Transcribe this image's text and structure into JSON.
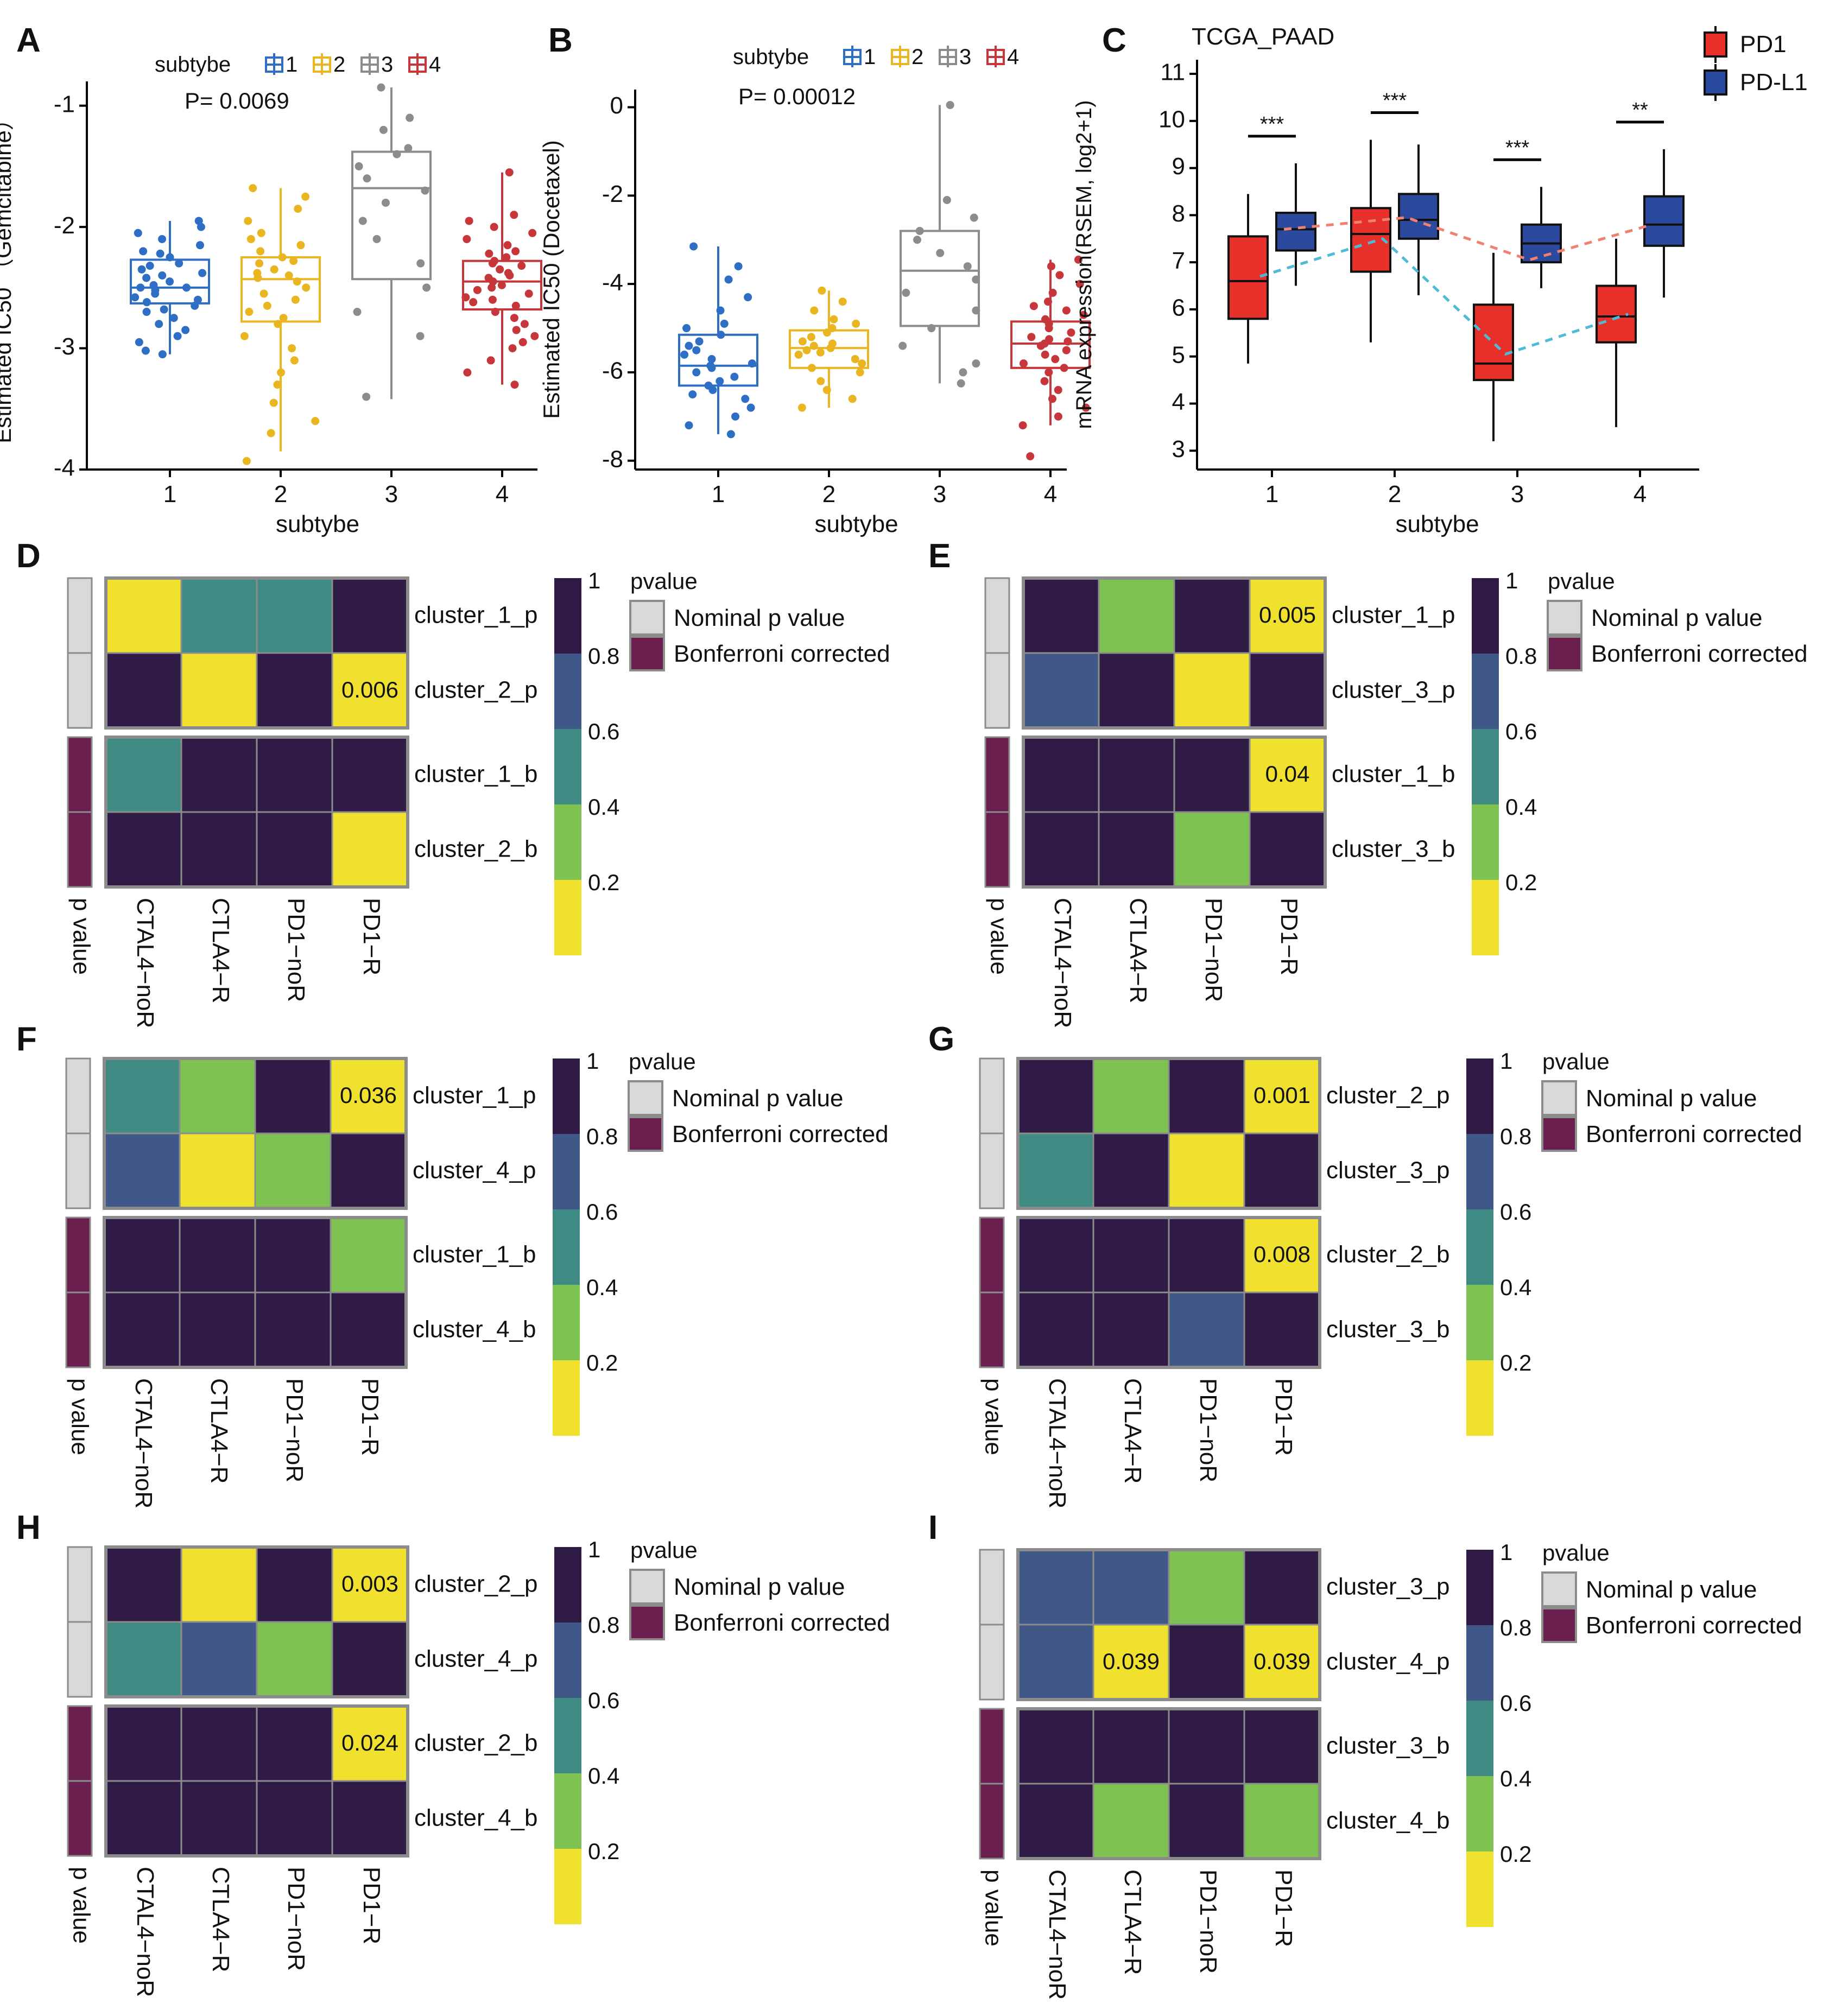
{
  "colors": {
    "subtype": {
      "1": "#2E6FC5",
      "2": "#E9B621",
      "3": "#8C8C8C",
      "4": "#C7363B"
    },
    "pd1": "#E8302A",
    "pdl1": "#2B4A9E",
    "viridis": [
      "#F0E12E",
      "#7EC352",
      "#3F8A83",
      "#3F5888",
      "#2F1B45"
    ],
    "nominal": "#D9D9D9",
    "bonferroni": "#6B1F4F",
    "cellborder": "#8C8C8C"
  },
  "panel_labels": [
    "A",
    "B",
    "C",
    "D",
    "E",
    "F",
    "G",
    "H",
    "I"
  ],
  "chart_data": [
    {
      "panel": "A",
      "type": "boxplot",
      "legend_title": "subtybe",
      "legend_keys": [
        "1",
        "2",
        "3",
        "4"
      ],
      "annotation": "P= 0.0069",
      "xlabel": "subtybe",
      "ylabel": "Estimated IC50 （Gemcitabine）",
      "categories": [
        "1",
        "2",
        "3",
        "4"
      ],
      "ylim": [
        -4.0,
        -0.8
      ],
      "yticks": [
        -4,
        -3,
        -2,
        -1
      ],
      "ytick_labels": [
        "-4",
        "-3",
        "-2",
        "-1"
      ],
      "boxes": [
        {
          "min": -3.05,
          "q1": -2.63,
          "median": -2.5,
          "q3": -2.27,
          "max": -1.95
        },
        {
          "min": -3.85,
          "q1": -2.78,
          "median": -2.43,
          "q3": -2.25,
          "max": -1.68
        },
        {
          "min": -3.42,
          "q1": -2.43,
          "median": -1.68,
          "q3": -1.38,
          "max": -0.85
        },
        {
          "min": -3.3,
          "q1": -2.68,
          "median": -2.45,
          "q3": -2.28,
          "max": -1.55
        }
      ],
      "points": [
        [
          -1.95,
          -2.0,
          -2.05,
          -2.1,
          -2.15,
          -2.2,
          -2.22,
          -2.25,
          -2.3,
          -2.32,
          -2.35,
          -2.38,
          -2.4,
          -2.42,
          -2.45,
          -2.48,
          -2.5,
          -2.5,
          -2.52,
          -2.55,
          -2.58,
          -2.6,
          -2.62,
          -2.65,
          -2.68,
          -2.7,
          -2.75,
          -2.8,
          -2.85,
          -2.9,
          -2.95,
          -3.02,
          -3.05
        ],
        [
          -1.68,
          -1.75,
          -1.85,
          -1.95,
          -2.05,
          -2.1,
          -2.15,
          -2.2,
          -2.25,
          -2.28,
          -2.3,
          -2.35,
          -2.38,
          -2.4,
          -2.42,
          -2.45,
          -2.5,
          -2.55,
          -2.6,
          -2.65,
          -2.7,
          -2.75,
          -2.8,
          -2.9,
          -3.0,
          -3.1,
          -3.2,
          -3.3,
          -3.45,
          -3.6,
          -3.7,
          -3.93
        ],
        [
          -0.85,
          -1.1,
          -1.2,
          -1.35,
          -1.4,
          -1.5,
          -1.6,
          -1.7,
          -1.8,
          -1.95,
          -2.1,
          -2.3,
          -2.5,
          -2.7,
          -2.9,
          -3.4
        ],
        [
          -1.55,
          -1.9,
          -1.95,
          -2.0,
          -2.05,
          -2.1,
          -2.15,
          -2.2,
          -2.22,
          -2.25,
          -2.28,
          -2.3,
          -2.32,
          -2.35,
          -2.38,
          -2.4,
          -2.42,
          -2.45,
          -2.48,
          -2.5,
          -2.52,
          -2.55,
          -2.58,
          -2.6,
          -2.62,
          -2.65,
          -2.7,
          -2.75,
          -2.8,
          -2.85,
          -2.9,
          -2.95,
          -3.0,
          -3.1,
          -3.2,
          -3.3
        ]
      ]
    },
    {
      "panel": "B",
      "type": "boxplot",
      "legend_title": "subtybe",
      "legend_keys": [
        "1",
        "2",
        "3",
        "4"
      ],
      "annotation": "P= 0.00012",
      "xlabel": "subtybe",
      "ylabel": "Estimated IC50 (Docetaxel)",
      "categories": [
        "1",
        "2",
        "3",
        "4"
      ],
      "ylim": [
        -8.2,
        0.4
      ],
      "yticks": [
        -8,
        -6,
        -4,
        -2,
        0
      ],
      "ytick_labels": [
        "-8",
        "-6",
        "-4",
        "-2",
        "0"
      ],
      "boxes": [
        {
          "min": -7.4,
          "q1": -6.3,
          "median": -5.85,
          "q3": -5.15,
          "max": -3.15
        },
        {
          "min": -6.8,
          "q1": -5.9,
          "median": -5.45,
          "q3": -5.05,
          "max": -4.15
        },
        {
          "min": -6.25,
          "q1": -4.95,
          "median": -3.7,
          "q3": -2.8,
          "max": 0.05
        },
        {
          "min": -7.2,
          "q1": -5.9,
          "median": -5.35,
          "q3": -4.85,
          "max": -3.45
        }
      ],
      "points": [
        [
          -3.15,
          -3.6,
          -3.9,
          -4.3,
          -4.6,
          -4.9,
          -5.0,
          -5.15,
          -5.3,
          -5.4,
          -5.5,
          -5.6,
          -5.7,
          -5.8,
          -5.85,
          -5.9,
          -6.0,
          -6.1,
          -6.2,
          -6.3,
          -6.4,
          -6.5,
          -6.6,
          -6.8,
          -7.0,
          -7.2,
          -7.4
        ],
        [
          -4.15,
          -4.4,
          -4.6,
          -4.8,
          -4.9,
          -5.0,
          -5.1,
          -5.2,
          -5.3,
          -5.35,
          -5.4,
          -5.45,
          -5.5,
          -5.55,
          -5.6,
          -5.7,
          -5.8,
          -5.9,
          -6.0,
          -6.2,
          -6.4,
          -6.6,
          -6.8
        ],
        [
          0.05,
          -2.1,
          -2.5,
          -2.8,
          -3.0,
          -3.3,
          -3.6,
          -3.9,
          -4.2,
          -4.6,
          -5.0,
          -5.4,
          -5.8,
          -6.0,
          -6.25
        ],
        [
          -3.45,
          -3.6,
          -3.8,
          -4.0,
          -4.2,
          -4.4,
          -4.5,
          -4.6,
          -4.7,
          -4.8,
          -4.9,
          -5.0,
          -5.1,
          -5.2,
          -5.25,
          -5.3,
          -5.35,
          -5.4,
          -5.5,
          -5.6,
          -5.7,
          -5.8,
          -5.9,
          -6.0,
          -6.2,
          -6.4,
          -6.6,
          -6.8,
          -7.0,
          -7.2,
          -7.9
        ]
      ]
    },
    {
      "panel": "C",
      "type": "grouped-boxplot",
      "title": "TCGA_PAAD",
      "xlabel": "subtybe",
      "ylabel": "mRNA expression(RSEM, log2+1)",
      "categories": [
        "1",
        "2",
        "3",
        "4"
      ],
      "ylim": [
        2.6,
        11.3
      ],
      "yticks": [
        3,
        4,
        5,
        6,
        7,
        8,
        9,
        10,
        11
      ],
      "series": [
        {
          "name": "PD1",
          "boxes": [
            {
              "min": 4.85,
              "q1": 5.8,
              "median": 6.6,
              "q3": 7.55,
              "max": 8.45
            },
            {
              "min": 5.3,
              "q1": 6.8,
              "median": 7.6,
              "q3": 8.15,
              "max": 9.6
            },
            {
              "min": 3.2,
              "q1": 4.5,
              "median": 4.85,
              "q3": 6.1,
              "max": 7.2
            },
            {
              "min": 3.5,
              "q1": 5.3,
              "median": 5.85,
              "q3": 6.5,
              "max": 7.5
            }
          ],
          "mean_line": [
            6.7,
            7.5,
            5.05,
            5.9
          ]
        },
        {
          "name": "PD-L1",
          "boxes": [
            {
              "min": 6.5,
              "q1": 7.25,
              "median": 7.7,
              "q3": 8.05,
              "max": 9.1
            },
            {
              "min": 6.3,
              "q1": 7.5,
              "median": 7.9,
              "q3": 8.45,
              "max": 9.5
            },
            {
              "min": 6.45,
              "q1": 7.0,
              "median": 7.4,
              "q3": 7.8,
              "max": 8.6
            },
            {
              "min": 6.25,
              "q1": 7.35,
              "median": 7.8,
              "q3": 8.4,
              "max": 9.4
            }
          ],
          "mean_line": [
            7.7,
            7.95,
            7.05,
            7.8
          ]
        }
      ],
      "significance": [
        "***",
        "***",
        "***",
        "**"
      ]
    },
    {
      "panel": "D",
      "type": "heatmap",
      "rows": [
        "cluster_1_p",
        "cluster_2_p",
        "cluster_1_b",
        "cluster_2_b"
      ],
      "cols": [
        "CTAL4−noR",
        "CTLA4−R",
        "PD1−noR",
        "PD1−R"
      ],
      "values": [
        [
          0.1,
          0.5,
          0.5,
          0.95
        ],
        [
          0.95,
          0.1,
          0.95,
          0.006
        ],
        [
          0.5,
          0.95,
          0.95,
          0.95
        ],
        [
          0.95,
          0.95,
          0.95,
          0.1
        ]
      ],
      "labels": [
        [
          "",
          "",
          "",
          ""
        ],
        [
          "",
          "",
          "",
          "0.006"
        ],
        [
          "",
          "",
          "",
          ""
        ],
        [
          "",
          "",
          "",
          ""
        ]
      ],
      "row_groups": [
        "nominal",
        "nominal",
        "bonferroni",
        "bonferroni"
      ],
      "row_annotation_label": "p value",
      "legend_title": "pvalue",
      "legend_items": [
        "Nominal p value",
        "Bonferroni corrected"
      ],
      "colorbar_ticks": [
        "1",
        "0.8",
        "0.6",
        "0.4",
        "0.2"
      ]
    },
    {
      "panel": "E",
      "type": "heatmap",
      "rows": [
        "cluster_1_p",
        "cluster_3_p",
        "cluster_1_b",
        "cluster_3_b"
      ],
      "cols": [
        "CTAL4−noR",
        "CTLA4−R",
        "PD1−noR",
        "PD1−R"
      ],
      "values": [
        [
          0.95,
          0.3,
          0.95,
          0.005
        ],
        [
          0.7,
          0.95,
          0.1,
          0.95
        ],
        [
          0.95,
          0.95,
          0.95,
          0.04
        ],
        [
          0.95,
          0.95,
          0.3,
          0.95
        ]
      ],
      "labels": [
        [
          "",
          "",
          "",
          "0.005"
        ],
        [
          "",
          "",
          "",
          ""
        ],
        [
          "",
          "",
          "",
          "0.04"
        ],
        [
          "",
          "",
          "",
          ""
        ]
      ],
      "row_groups": [
        "nominal",
        "nominal",
        "bonferroni",
        "bonferroni"
      ],
      "row_annotation_label": "p value",
      "legend_title": "pvalue",
      "legend_items": [
        "Nominal p value",
        "Bonferroni corrected"
      ],
      "colorbar_ticks": [
        "1",
        "0.8",
        "0.6",
        "0.4",
        "0.2"
      ]
    },
    {
      "panel": "F",
      "type": "heatmap",
      "rows": [
        "cluster_1_p",
        "cluster_4_p",
        "cluster_1_b",
        "cluster_4_b"
      ],
      "cols": [
        "CTAL4−noR",
        "CTLA4−R",
        "PD1−noR",
        "PD1−R"
      ],
      "values": [
        [
          0.5,
          0.3,
          0.95,
          0.036
        ],
        [
          0.7,
          0.1,
          0.3,
          0.95
        ],
        [
          0.95,
          0.95,
          0.95,
          0.3
        ],
        [
          0.95,
          0.95,
          0.95,
          0.95
        ]
      ],
      "labels": [
        [
          "",
          "",
          "",
          "0.036"
        ],
        [
          "",
          "",
          "",
          ""
        ],
        [
          "",
          "",
          "",
          ""
        ],
        [
          "",
          "",
          "",
          ""
        ]
      ],
      "row_groups": [
        "nominal",
        "nominal",
        "bonferroni",
        "bonferroni"
      ],
      "row_annotation_label": "p value",
      "legend_title": "pvalue",
      "legend_items": [
        "Nominal p value",
        "Bonferroni corrected"
      ],
      "colorbar_ticks": [
        "1",
        "0.8",
        "0.6",
        "0.4",
        "0.2"
      ]
    },
    {
      "panel": "G",
      "type": "heatmap",
      "rows": [
        "cluster_2_p",
        "cluster_3_p",
        "cluster_2_b",
        "cluster_3_b"
      ],
      "cols": [
        "CTAL4−noR",
        "CTLA4−R",
        "PD1−noR",
        "PD1−R"
      ],
      "values": [
        [
          0.95,
          0.3,
          0.95,
          0.001
        ],
        [
          0.5,
          0.95,
          0.1,
          0.95
        ],
        [
          0.95,
          0.95,
          0.95,
          0.008
        ],
        [
          0.95,
          0.95,
          0.7,
          0.95
        ]
      ],
      "labels": [
        [
          "",
          "",
          "",
          "0.001"
        ],
        [
          "",
          "",
          "",
          ""
        ],
        [
          "",
          "",
          "",
          "0.008"
        ],
        [
          "",
          "",
          "",
          ""
        ]
      ],
      "row_groups": [
        "nominal",
        "nominal",
        "bonferroni",
        "bonferroni"
      ],
      "row_annotation_label": "p value",
      "legend_title": "pvalue",
      "legend_items": [
        "Nominal p value",
        "Bonferroni corrected"
      ],
      "colorbar_ticks": [
        "1",
        "0.8",
        "0.6",
        "0.4",
        "0.2"
      ]
    },
    {
      "panel": "H",
      "type": "heatmap",
      "rows": [
        "cluster_2_p",
        "cluster_4_p",
        "cluster_2_b",
        "cluster_4_b"
      ],
      "cols": [
        "CTAL4−noR",
        "CTLA4−R",
        "PD1−noR",
        "PD1−R"
      ],
      "values": [
        [
          0.95,
          0.1,
          0.95,
          0.003
        ],
        [
          0.5,
          0.7,
          0.3,
          0.95
        ],
        [
          0.95,
          0.95,
          0.95,
          0.024
        ],
        [
          0.95,
          0.95,
          0.95,
          0.95
        ]
      ],
      "labels": [
        [
          "",
          "",
          "",
          "0.003"
        ],
        [
          "",
          "",
          "",
          ""
        ],
        [
          "",
          "",
          "",
          "0.024"
        ],
        [
          "",
          "",
          "",
          ""
        ]
      ],
      "row_groups": [
        "nominal",
        "nominal",
        "bonferroni",
        "bonferroni"
      ],
      "row_annotation_label": "p value",
      "legend_title": "pvalue",
      "legend_items": [
        "Nominal p value",
        "Bonferroni corrected"
      ],
      "colorbar_ticks": [
        "1",
        "0.8",
        "0.6",
        "0.4",
        "0.2"
      ]
    },
    {
      "panel": "I",
      "type": "heatmap",
      "rows": [
        "cluster_3_p",
        "cluster_4_p",
        "cluster_3_b",
        "cluster_4_b"
      ],
      "cols": [
        "CTAL4−noR",
        "CTLA4−R",
        "PD1−noR",
        "PD1−R"
      ],
      "values": [
        [
          0.7,
          0.7,
          0.3,
          0.95
        ],
        [
          0.7,
          0.039,
          0.95,
          0.039
        ],
        [
          0.95,
          0.95,
          0.95,
          0.95
        ],
        [
          0.95,
          0.3,
          0.95,
          0.3
        ]
      ],
      "labels": [
        [
          "",
          "",
          "",
          ""
        ],
        [
          "",
          "0.039",
          "",
          "0.039"
        ],
        [
          "",
          "",
          "",
          ""
        ],
        [
          "",
          "",
          "",
          ""
        ]
      ],
      "row_groups": [
        "nominal",
        "nominal",
        "bonferroni",
        "bonferroni"
      ],
      "row_annotation_label": "p value",
      "legend_title": "pvalue",
      "legend_items": [
        "Nominal p value",
        "Bonferroni corrected"
      ],
      "colorbar_ticks": [
        "1",
        "0.8",
        "0.6",
        "0.4",
        "0.2"
      ]
    }
  ]
}
